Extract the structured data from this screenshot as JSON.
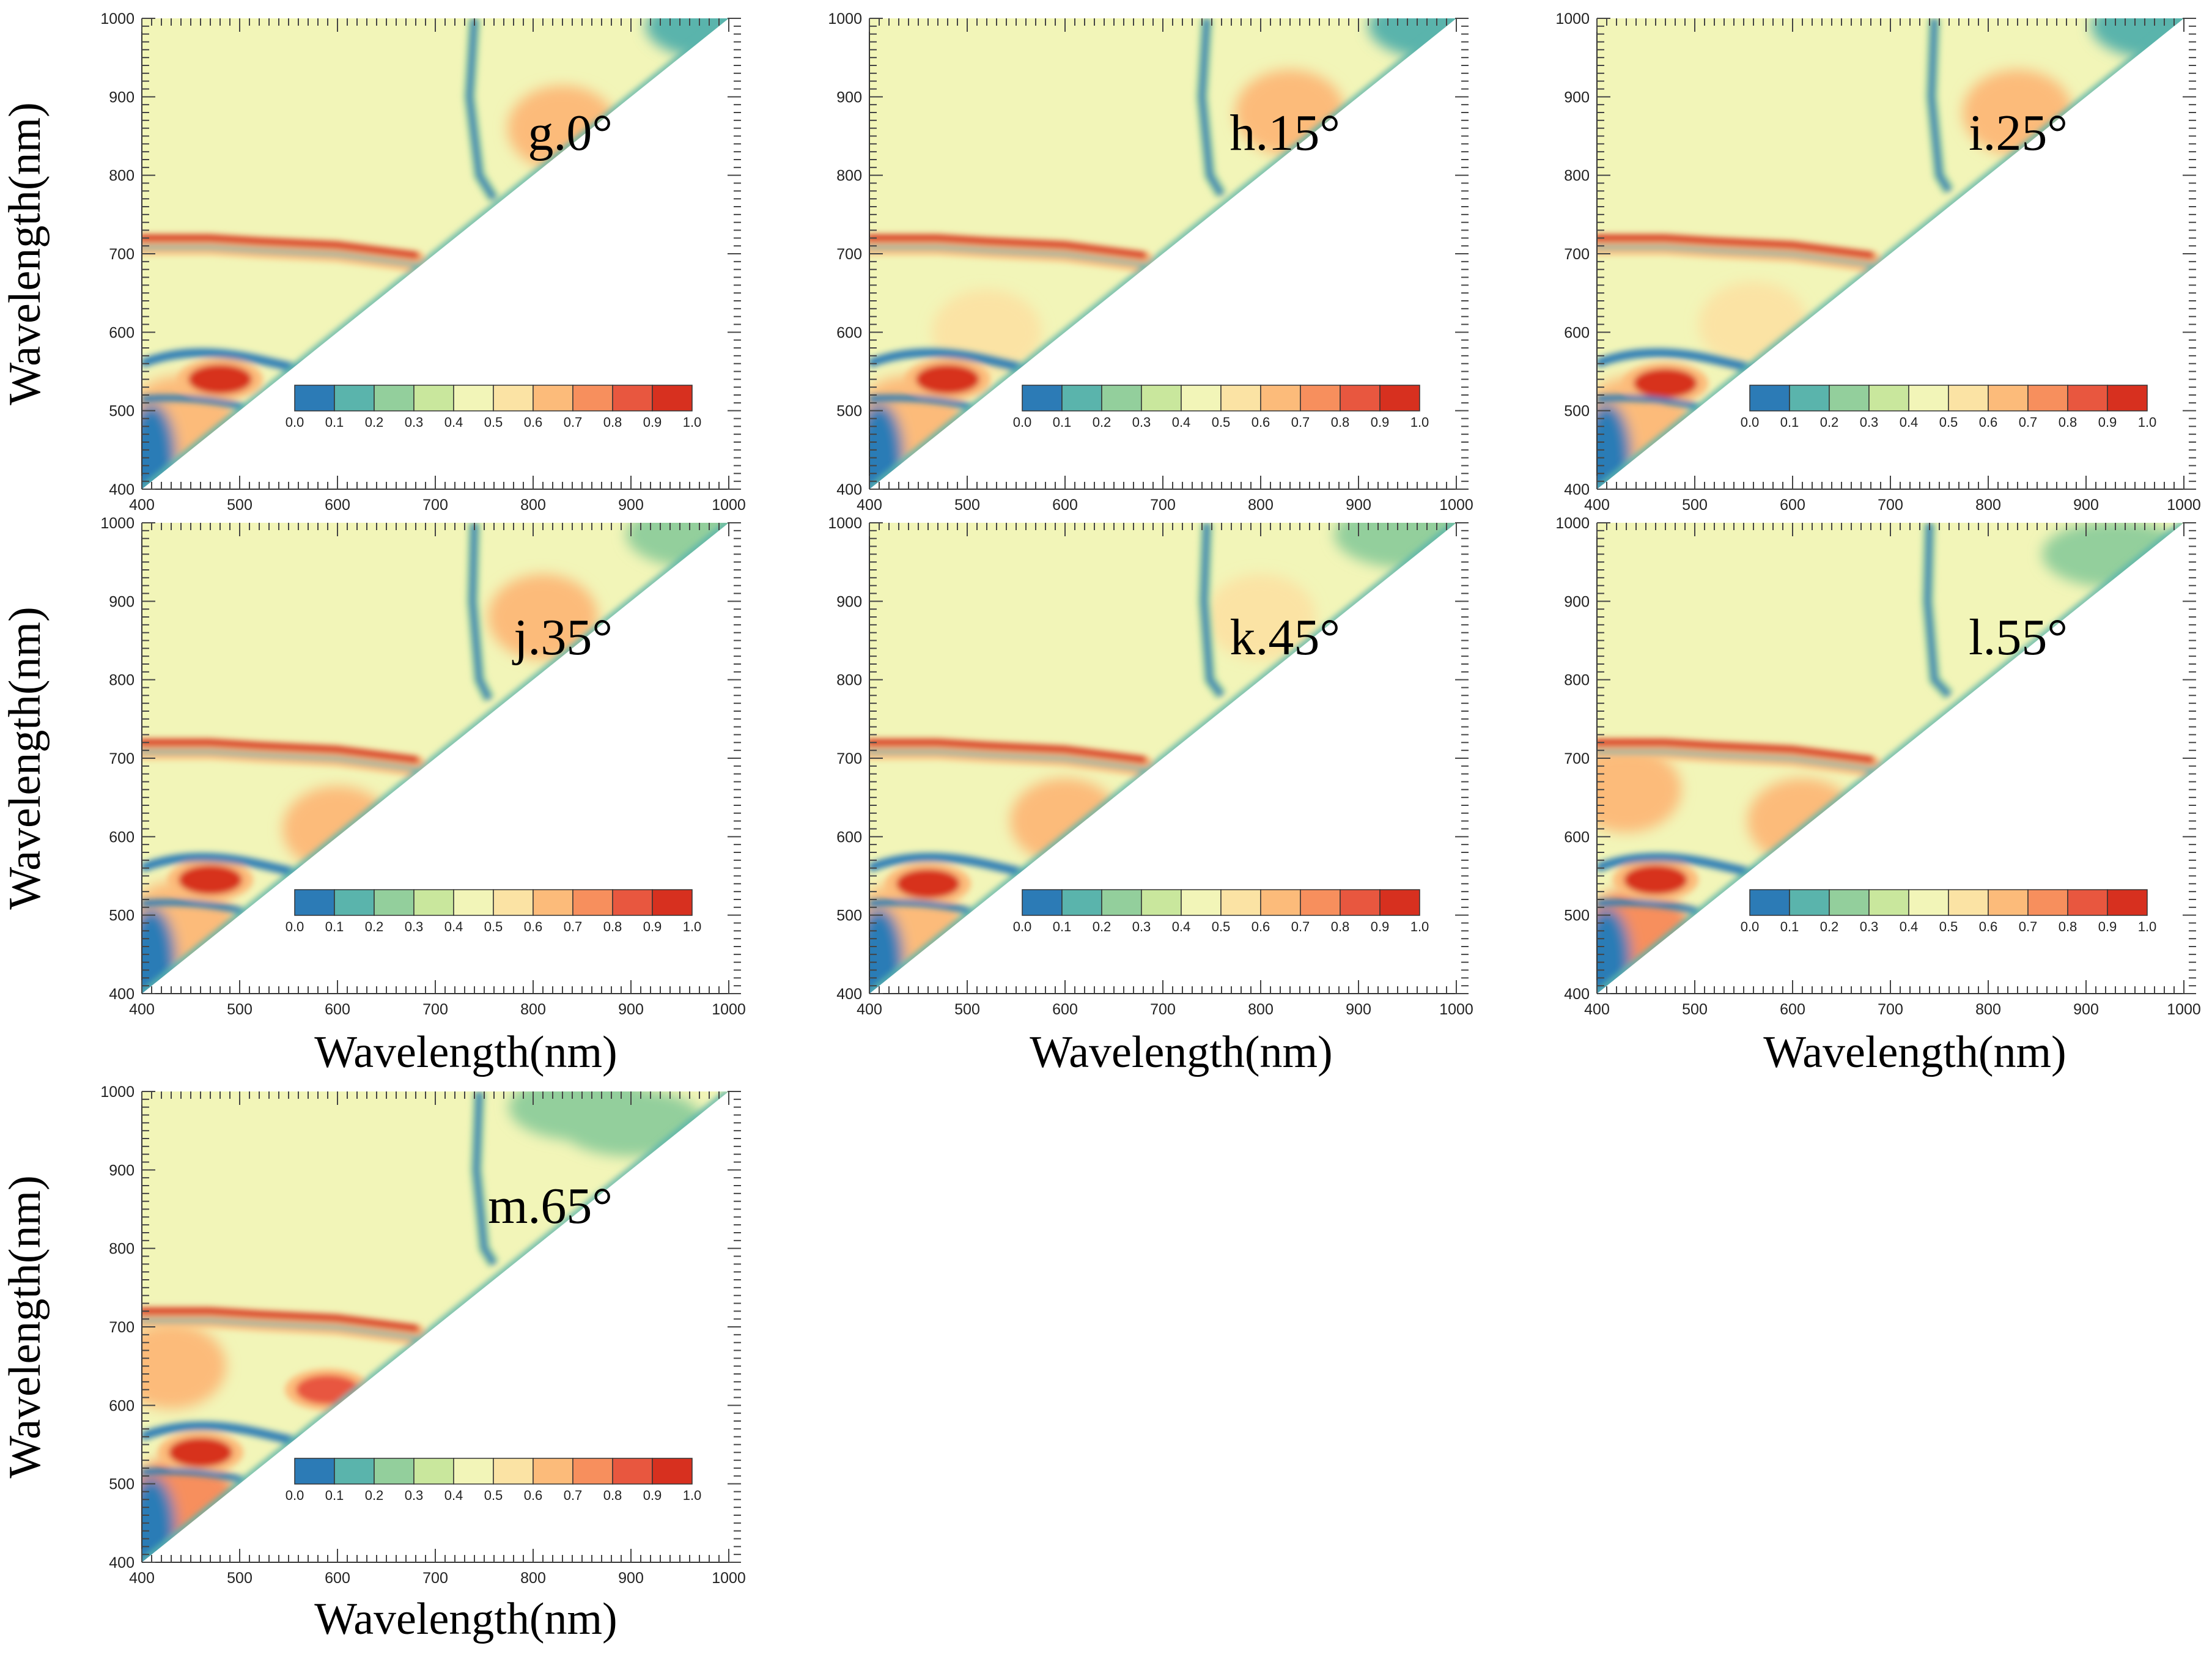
{
  "figure": {
    "ylabel": "Wavelength(nm)",
    "xlabel": "Wavelength(nm)"
  },
  "colorbar": {
    "colors": [
      "#2c7bb6",
      "#5ab4ac",
      "#93cf9c",
      "#c9e79d",
      "#f2f5b8",
      "#fbe3a4",
      "#fcbb7a",
      "#f78f5d",
      "#e8573f",
      "#d7301f"
    ],
    "tick_labels": [
      "0.0",
      "0.1",
      "0.2",
      "0.3",
      "0.4",
      "0.5",
      "0.6",
      "0.7",
      "0.8",
      "0.9",
      "1.0"
    ]
  },
  "chart_data": [
    {
      "type": "heatmap",
      "panel": "g",
      "label": "g.0°",
      "angle_deg": 0,
      "x_ticks": [
        "400",
        "500",
        "600",
        "700",
        "800",
        "900",
        "1000"
      ],
      "y_ticks": [
        "400",
        "500",
        "600",
        "700",
        "800",
        "900",
        "1000"
      ],
      "xlim": [
        400,
        1000
      ],
      "ylim": [
        400,
        1000
      ],
      "clim": [
        0,
        1
      ],
      "features": {
        "blue_ridge": [
          [
            740,
            1000
          ],
          [
            735,
            900
          ],
          [
            745,
            800
          ],
          [
            760,
            770
          ]
        ],
        "red_band": [
          [
            400,
            712
          ],
          [
            470,
            712
          ],
          [
            520,
            708
          ],
          [
            600,
            703
          ],
          [
            680,
            690
          ]
        ],
        "red_lobes": [
          {
            "x": 480,
            "y": 540,
            "level": 0.95
          }
        ],
        "orange_regions": [
          {
            "x": 830,
            "y": 860,
            "level": 0.65
          },
          {
            "x": 440,
            "y": 490,
            "level": 0.65
          }
        ],
        "green_regions": [
          {
            "x": 990,
            "y": 990,
            "level": 0.15
          }
        ]
      }
    },
    {
      "type": "heatmap",
      "panel": "h",
      "label": "h.15°",
      "angle_deg": 15,
      "x_ticks": [
        "400",
        "500",
        "600",
        "700",
        "800",
        "900",
        "1000"
      ],
      "y_ticks": [
        "400",
        "500",
        "600",
        "700",
        "800",
        "900",
        "1000"
      ],
      "xlim": [
        400,
        1000
      ],
      "ylim": [
        400,
        1000
      ],
      "clim": [
        0,
        1
      ],
      "features": {
        "blue_ridge": [
          [
            745,
            1000
          ],
          [
            740,
            900
          ],
          [
            748,
            800
          ],
          [
            760,
            775
          ]
        ],
        "red_band": [
          [
            400,
            712
          ],
          [
            470,
            712
          ],
          [
            520,
            708
          ],
          [
            600,
            703
          ],
          [
            680,
            690
          ]
        ],
        "red_lobes": [
          {
            "x": 480,
            "y": 540,
            "level": 0.95
          }
        ],
        "orange_regions": [
          {
            "x": 830,
            "y": 880,
            "level": 0.65
          },
          {
            "x": 440,
            "y": 490,
            "level": 0.65
          },
          {
            "x": 520,
            "y": 600,
            "level": 0.6
          }
        ],
        "green_regions": [
          {
            "x": 985,
            "y": 990,
            "level": 0.2
          }
        ]
      }
    },
    {
      "type": "heatmap",
      "panel": "i",
      "label": "i.25°",
      "angle_deg": 25,
      "x_ticks": [
        "400",
        "500",
        "600",
        "700",
        "800",
        "900",
        "1000"
      ],
      "y_ticks": [
        "400",
        "500",
        "600",
        "700",
        "800",
        "900",
        "1000"
      ],
      "xlim": [
        400,
        1000
      ],
      "ylim": [
        400,
        1000
      ],
      "clim": [
        0,
        1
      ],
      "features": {
        "blue_ridge": [
          [
            745,
            1000
          ],
          [
            742,
            900
          ],
          [
            750,
            800
          ],
          [
            760,
            780
          ]
        ],
        "red_band": [
          [
            400,
            712
          ],
          [
            470,
            712
          ],
          [
            520,
            708
          ],
          [
            600,
            703
          ],
          [
            680,
            690
          ]
        ],
        "red_lobes": [
          {
            "x": 470,
            "y": 535,
            "level": 0.95
          }
        ],
        "orange_regions": [
          {
            "x": 830,
            "y": 880,
            "level": 0.65
          },
          {
            "x": 440,
            "y": 490,
            "level": 0.65
          },
          {
            "x": 560,
            "y": 610,
            "level": 0.6
          }
        ],
        "green_regions": [
          {
            "x": 980,
            "y": 990,
            "level": 0.2
          }
        ]
      }
    },
    {
      "type": "heatmap",
      "panel": "j",
      "label": "j.35°",
      "angle_deg": 35,
      "x_ticks": [
        "400",
        "500",
        "600",
        "700",
        "800",
        "900",
        "1000"
      ],
      "y_ticks": [
        "400",
        "500",
        "600",
        "700",
        "800",
        "900",
        "1000"
      ],
      "xlim": [
        400,
        1000
      ],
      "ylim": [
        400,
        1000
      ],
      "clim": [
        0,
        1
      ],
      "features": {
        "blue_ridge": [
          [
            740,
            1000
          ],
          [
            738,
            900
          ],
          [
            745,
            800
          ],
          [
            755,
            775
          ]
        ],
        "red_band": [
          [
            400,
            712
          ],
          [
            470,
            712
          ],
          [
            520,
            708
          ],
          [
            600,
            703
          ],
          [
            680,
            690
          ]
        ],
        "red_lobes": [
          {
            "x": 470,
            "y": 545,
            "level": 0.95
          }
        ],
        "orange_regions": [
          {
            "x": 810,
            "y": 880,
            "level": 0.65
          },
          {
            "x": 440,
            "y": 490,
            "level": 0.65
          },
          {
            "x": 600,
            "y": 610,
            "level": 0.62
          }
        ],
        "green_regions": [
          {
            "x": 970,
            "y": 985,
            "level": 0.25
          }
        ]
      }
    },
    {
      "type": "heatmap",
      "panel": "k",
      "label": "k.45°",
      "angle_deg": 45,
      "x_ticks": [
        "400",
        "500",
        "600",
        "700",
        "800",
        "900",
        "1000"
      ],
      "y_ticks": [
        "400",
        "500",
        "600",
        "700",
        "800",
        "900",
        "1000"
      ],
      "xlim": [
        400,
        1000
      ],
      "ylim": [
        400,
        1000
      ],
      "clim": [
        0,
        1
      ],
      "features": {
        "blue_ridge": [
          [
            745,
            1000
          ],
          [
            742,
            900
          ],
          [
            748,
            800
          ],
          [
            760,
            780
          ]
        ],
        "red_band": [
          [
            400,
            712
          ],
          [
            470,
            712
          ],
          [
            520,
            708
          ],
          [
            600,
            703
          ],
          [
            680,
            690
          ]
        ],
        "red_lobes": [
          {
            "x": 460,
            "y": 540,
            "level": 0.95
          }
        ],
        "orange_regions": [
          {
            "x": 800,
            "y": 880,
            "level": 0.6
          },
          {
            "x": 440,
            "y": 490,
            "level": 0.7
          },
          {
            "x": 600,
            "y": 620,
            "level": 0.65
          }
        ],
        "green_regions": [
          {
            "x": 950,
            "y": 985,
            "level": 0.3
          }
        ]
      }
    },
    {
      "type": "heatmap",
      "panel": "l",
      "label": "l.55°",
      "angle_deg": 55,
      "x_ticks": [
        "400",
        "500",
        "600",
        "700",
        "800",
        "900",
        "1000"
      ],
      "y_ticks": [
        "400",
        "500",
        "600",
        "700",
        "800",
        "900",
        "1000"
      ],
      "xlim": [
        400,
        1000
      ],
      "ylim": [
        400,
        1000
      ],
      "clim": [
        0,
        1
      ],
      "features": {
        "blue_ridge": [
          [
            740,
            1000
          ],
          [
            738,
            900
          ],
          [
            745,
            800
          ],
          [
            760,
            780
          ]
        ],
        "red_band": [
          [
            400,
            712
          ],
          [
            470,
            712
          ],
          [
            520,
            708
          ],
          [
            600,
            703
          ],
          [
            680,
            690
          ]
        ],
        "red_lobes": [
          {
            "x": 460,
            "y": 545,
            "level": 0.95
          }
        ],
        "orange_regions": [
          {
            "x": 430,
            "y": 660,
            "level": 0.65
          },
          {
            "x": 440,
            "y": 480,
            "level": 0.75
          },
          {
            "x": 610,
            "y": 620,
            "level": 0.65
          }
        ],
        "green_regions": [
          {
            "x": 930,
            "y": 960,
            "level": 0.3
          }
        ]
      }
    },
    {
      "type": "heatmap",
      "panel": "m",
      "label": "m.65°",
      "angle_deg": 65,
      "x_ticks": [
        "400",
        "500",
        "600",
        "700",
        "800",
        "900",
        "1000"
      ],
      "y_ticks": [
        "400",
        "500",
        "600",
        "700",
        "800",
        "900",
        "1000"
      ],
      "xlim": [
        400,
        1000
      ],
      "ylim": [
        400,
        1000
      ],
      "clim": [
        0,
        1
      ],
      "features": {
        "blue_ridge": [
          [
            745,
            1000
          ],
          [
            742,
            900
          ],
          [
            750,
            800
          ],
          [
            760,
            780
          ]
        ],
        "red_band": [
          [
            400,
            712
          ],
          [
            470,
            712
          ],
          [
            520,
            708
          ],
          [
            600,
            703
          ],
          [
            680,
            690
          ]
        ],
        "red_lobes": [
          {
            "x": 460,
            "y": 540,
            "level": 0.95
          },
          {
            "x": 590,
            "y": 620,
            "level": 0.85
          }
        ],
        "orange_regions": [
          {
            "x": 430,
            "y": 650,
            "level": 0.7
          },
          {
            "x": 440,
            "y": 480,
            "level": 0.8
          }
        ],
        "green_regions": [
          {
            "x": 900,
            "y": 960,
            "level": 0.25
          },
          {
            "x": 850,
            "y": 980,
            "level": 0.3
          }
        ]
      }
    }
  ]
}
